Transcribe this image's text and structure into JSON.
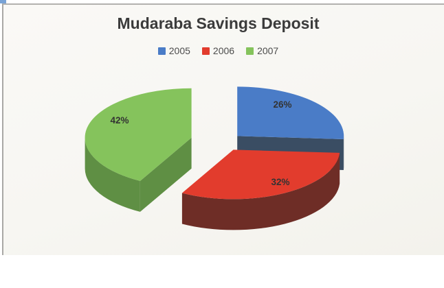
{
  "page": {
    "background": "#ffffff",
    "scan_background": "#f7f6f2",
    "scan_border_color": "#aeadaa",
    "corner_artifact_color": "#79a3d6",
    "title_color": "#3b3b3b",
    "label_color": "#333333"
  },
  "chart_data": {
    "type": "pie",
    "style": "3d-exploded-pie",
    "title": "Mudaraba Savings Deposit",
    "legend_position": "top",
    "data_labels": "percent",
    "slices": [
      {
        "label": "2005",
        "value": 26,
        "display": "26%",
        "color": "#4a7cc7",
        "side_color": "#3a4d63"
      },
      {
        "label": "2006",
        "value": 32,
        "display": "32%",
        "color": "#e23c2d",
        "side_color": "#6e2d26"
      },
      {
        "label": "2007",
        "value": 42,
        "display": "42%",
        "color": "#85c35c",
        "side_color": "#5f8f44"
      }
    ]
  }
}
